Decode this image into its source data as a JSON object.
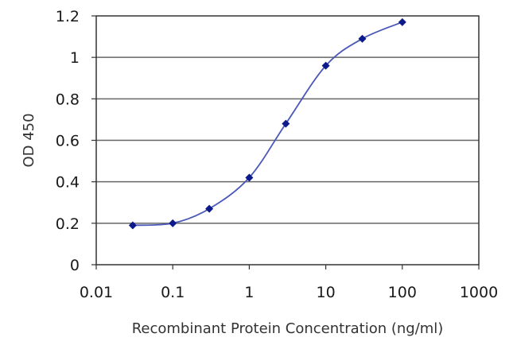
{
  "chart_data": {
    "type": "line",
    "title": "",
    "xlabel": "Recombinant Protein Concentration (ng/ml)",
    "ylabel": "OD 450",
    "x_scale": "log",
    "xlim": [
      0.01,
      1000
    ],
    "ylim": [
      0,
      1.2
    ],
    "x_ticks": [
      "0.01",
      "0.1",
      "1",
      "10",
      "100",
      "1000"
    ],
    "y_ticks": [
      "0",
      "0.2",
      "0.4",
      "0.6",
      "0.8",
      "1",
      "1.2"
    ],
    "grid": "horizontal",
    "series": [
      {
        "x": [
          0.03,
          0.1,
          0.3,
          1,
          3,
          10,
          30,
          100
        ],
        "y": [
          0.19,
          0.2,
          0.27,
          0.42,
          0.68,
          0.96,
          1.09,
          1.17
        ]
      }
    ],
    "colors": {
      "line": "#4a58b8",
      "marker": "#0d1a8c",
      "grid": "#666666",
      "axis": "#333333"
    }
  }
}
